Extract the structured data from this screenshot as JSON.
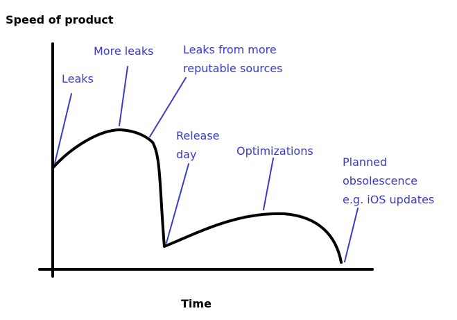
{
  "diagram": {
    "y_axis_label": "Speed of product",
    "x_axis_label": "Time",
    "annotations": [
      {
        "id": "leaks",
        "lines": [
          "Leaks"
        ]
      },
      {
        "id": "more-leaks",
        "lines": [
          "More leaks"
        ]
      },
      {
        "id": "reputable",
        "lines": [
          "Leaks from more",
          "reputable sources"
        ]
      },
      {
        "id": "release",
        "lines": [
          "Release",
          "day"
        ]
      },
      {
        "id": "optimizations",
        "lines": [
          "Optimizations"
        ]
      },
      {
        "id": "obsolescence",
        "lines": [
          "Planned",
          "obsolescence",
          "e.g. iOS updates"
        ]
      }
    ]
  },
  "colors": {
    "axis": "#000000",
    "curve": "#000000",
    "label": "#000000",
    "annotation": "#3a3ac8"
  }
}
